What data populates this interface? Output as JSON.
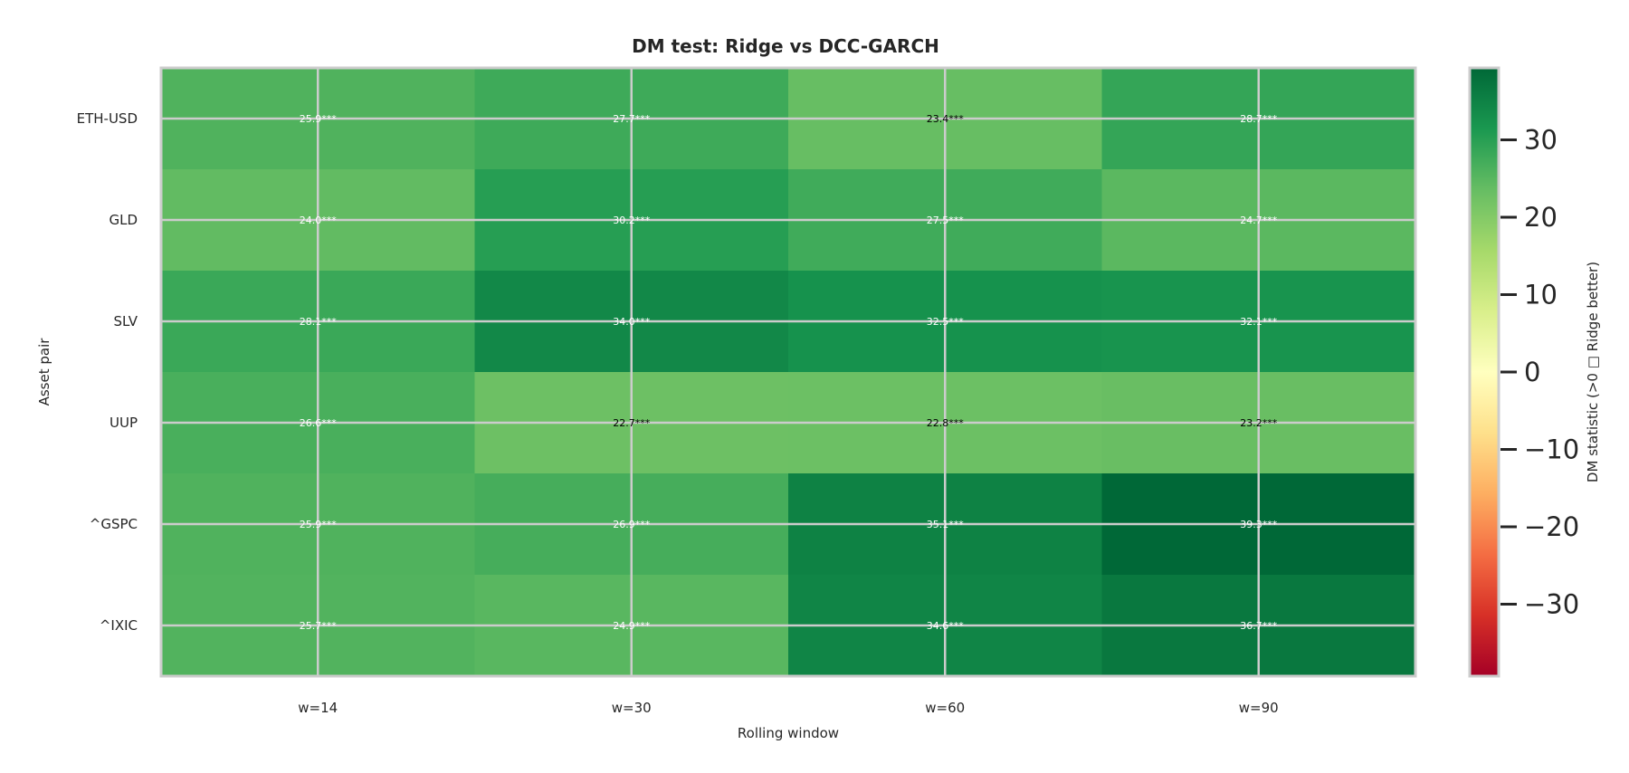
{
  "chart_data": {
    "type": "heatmap",
    "title": "DM test: Ridge vs DCC-GARCH",
    "xlabel": "Rolling window",
    "ylabel": "Asset pair",
    "x_categories": [
      "w=14",
      "w=30",
      "w=60",
      "w=90"
    ],
    "y_categories": [
      "ETH-USD",
      "GLD",
      "SLV",
      "UUP",
      "^GSPC",
      "^IXIC"
    ],
    "values": [
      [
        25.9,
        27.7,
        23.4,
        28.7
      ],
      [
        24.0,
        30.2,
        27.5,
        24.7
      ],
      [
        28.1,
        34.0,
        32.5,
        32.1
      ],
      [
        26.6,
        22.7,
        22.8,
        23.2
      ],
      [
        25.9,
        26.9,
        35.1,
        39.3
      ],
      [
        25.7,
        24.9,
        34.6,
        36.7
      ]
    ],
    "cell_labels": [
      [
        "25.9***",
        "27.7***",
        "23.4***",
        "28.7***"
      ],
      [
        "24.0***",
        "30.2***",
        "27.5***",
        "24.7***"
      ],
      [
        "28.1***",
        "34.0***",
        "32.5***",
        "32.1***"
      ],
      [
        "26.6***",
        "22.7***",
        "22.8***",
        "23.2***"
      ],
      [
        "25.9***",
        "26.9***",
        "35.1***",
        "39.3***"
      ],
      [
        "25.7***",
        "24.9***",
        "34.6***",
        "36.7***"
      ]
    ],
    "colorbar": {
      "label": "DM statistic (>0 □ Ridge better)",
      "vmin": -39.3,
      "vmax": 39.3,
      "ticks": [
        30,
        20,
        10,
        0,
        -10,
        -20,
        -30
      ],
      "tick_labels": [
        "30",
        "20",
        "10",
        "0",
        "−10",
        "−20",
        "−30"
      ],
      "colormap": "RdYlGn"
    },
    "grid": true
  }
}
